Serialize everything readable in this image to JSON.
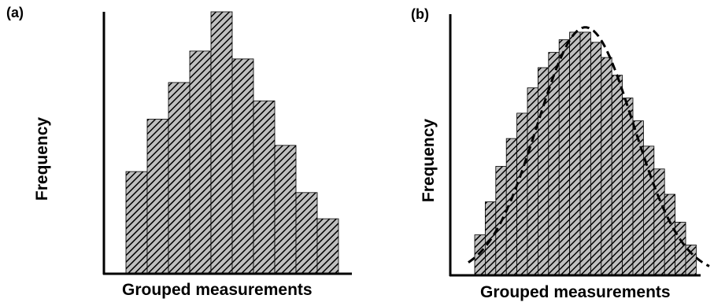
{
  "chart_data": [
    {
      "type": "bar",
      "panel_label": "(a)",
      "xlabel": "Grouped measurements",
      "ylabel": "Frequency",
      "values": [
        39,
        59,
        73,
        85,
        100,
        82,
        66,
        49,
        31,
        21
      ],
      "ylim": [
        0,
        100
      ],
      "grid": false,
      "colors": {
        "fill_bg": "#bfbfbf",
        "hatch": "#000000",
        "axis": "#000000"
      }
    },
    {
      "type": "bar",
      "panel_label": "(b)",
      "xlabel": "Grouped measurements",
      "ylabel": "Frequency",
      "values": [
        16,
        29,
        43,
        54,
        64,
        74,
        82,
        88,
        93,
        96,
        96,
        92,
        86,
        79,
        70,
        61,
        51,
        42,
        32,
        21,
        12
      ],
      "ylim": [
        0,
        100
      ],
      "grid": false,
      "overlay": {
        "type": "curve",
        "style": "dashed",
        "shape": "normal-distribution"
      },
      "colors": {
        "fill_bg": "#bfbfbf",
        "hatch": "#000000",
        "axis": "#000000",
        "curve": "#000000"
      }
    }
  ]
}
